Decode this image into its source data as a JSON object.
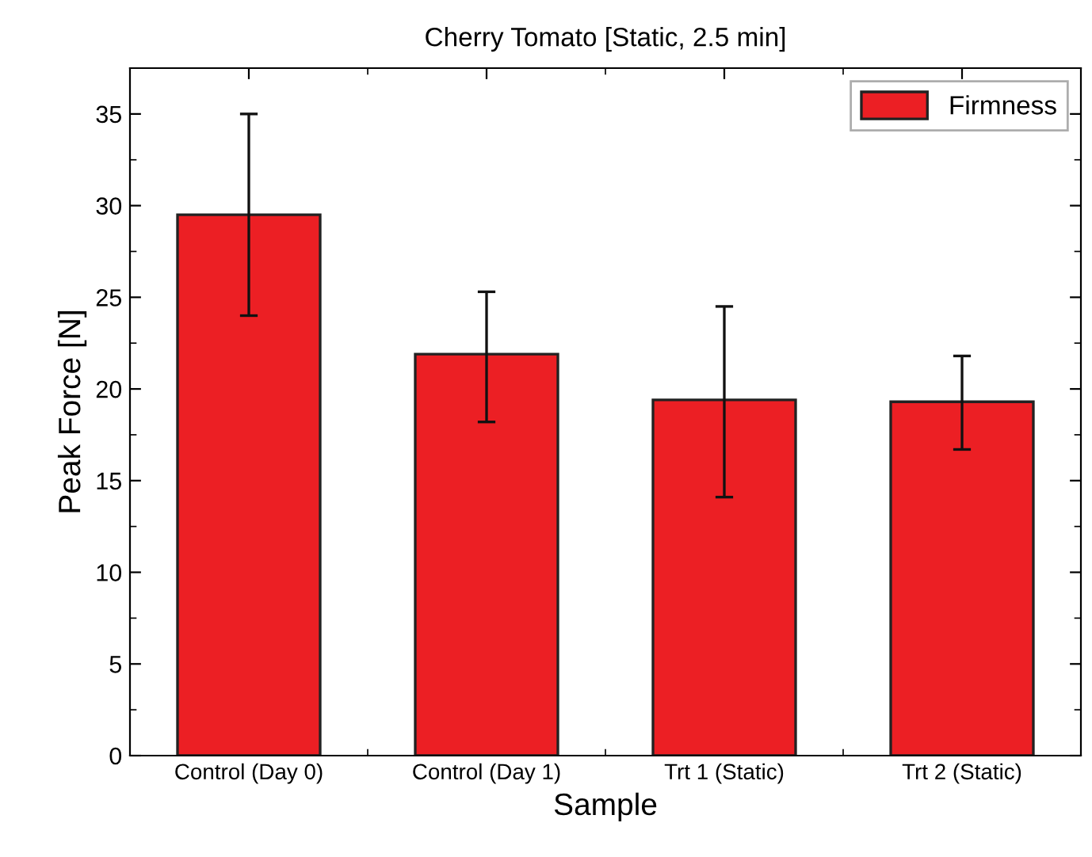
{
  "chart_data": {
    "type": "bar",
    "title": "Cherry Tomato [Static, 2.5 min]",
    "xlabel": "Sample",
    "ylabel": "Peak Force [N]",
    "categories": [
      "Control (Day 0)",
      "Control (Day 1)",
      "Trt 1 (Static)",
      "Trt 2 (Static)"
    ],
    "series": [
      {
        "name": "Firmness",
        "color": "#ec1f24",
        "values": [
          29.5,
          21.9,
          19.4,
          19.3
        ],
        "errors": [
          [
            24.0,
            35.0
          ],
          [
            18.2,
            25.3
          ],
          [
            14.1,
            24.5
          ],
          [
            16.7,
            21.8
          ]
        ]
      }
    ],
    "ylim": [
      0,
      37.5
    ],
    "yticks": [
      0,
      5,
      10,
      15,
      20,
      25,
      30,
      35
    ],
    "grid": false,
    "legend": "top right"
  }
}
